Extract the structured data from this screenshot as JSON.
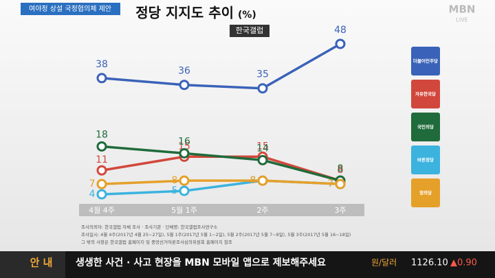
{
  "chart_data": {
    "type": "line",
    "title": "정당 지지도 추이",
    "unit": "(%)",
    "source": "한국갤럽",
    "categories": [
      "4월 4주",
      "5월 1주",
      "2주",
      "3주"
    ],
    "series": [
      {
        "name": "더불어민주당",
        "color": "#3a62b8",
        "values": [
          38,
          36,
          35,
          48
        ]
      },
      {
        "name": "자유한국당",
        "color": "#d2473c",
        "values": [
          11,
          15,
          15,
          8
        ]
      },
      {
        "name": "국민의당",
        "color": "#1f6b3b",
        "values": [
          18,
          16,
          14,
          8
        ]
      },
      {
        "name": "바른정당",
        "color": "#3bb3de",
        "values": [
          4,
          5,
          8,
          7
        ]
      },
      {
        "name": "정의당",
        "color": "#e5a02a",
        "values": [
          7,
          8,
          8,
          7
        ]
      }
    ]
  },
  "broadcast": {
    "tag": "여야정 상설 국정협의체 제안",
    "logo": "MBN",
    "live": "LIVE",
    "footnotes": [
      "조사의뢰자: 한국갤럽 자체 조사 · 조사기관 · 단체명: 한국갤럽조사연구소",
      "조사일시: 4월 4주(2017년 4월 25~27일), 5월 1주(2017년 5월 1~2일), 5월 2주(2017년 5월 7~8일), 5월 3주(2017년 5월 16~18일)",
      "그 밖의 사항은 한국갤럽 홈페이지 및 중앙선거여론조사심의위원회 홈페이지 참조"
    ],
    "ticker_label": "안 내",
    "ticker_text": "생생한 사건 · 사고 현장을 MBN 모바일 앱으로 제보해주세요",
    "fx_label": "원/달러",
    "fx_value": "1126.10",
    "fx_change": "▲0.90"
  }
}
